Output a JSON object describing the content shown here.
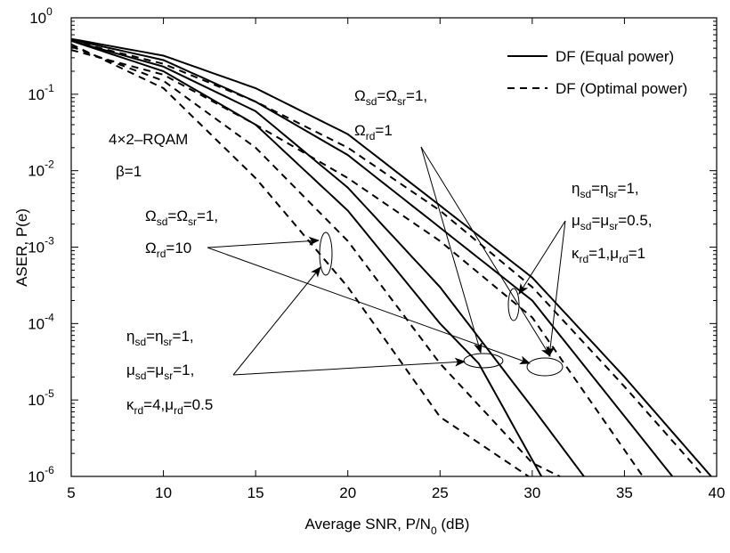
{
  "chart_data": {
    "type": "line",
    "xlabel": "Average SNR, P/N",
    "xlabel_sub": "0",
    "xlabel_unit": " (dB)",
    "ylabel": "ASER, P(e)",
    "xlim": [
      5,
      40
    ],
    "ylim": [
      1e-06,
      1
    ],
    "yscale": "log",
    "x_ticks": [
      "5",
      "10",
      "15",
      "20",
      "25",
      "30",
      "35",
      "40"
    ],
    "y_ticks": [
      {
        "base": "10",
        "exp": "0",
        "value": 1
      },
      {
        "base": "10",
        "exp": "-1",
        "value": 0.1
      },
      {
        "base": "10",
        "exp": "-2",
        "value": 0.01
      },
      {
        "base": "10",
        "exp": "-3",
        "value": 0.001
      },
      {
        "base": "10",
        "exp": "-4",
        "value": 0.0001
      },
      {
        "base": "10",
        "exp": "-5",
        "value": 1e-05
      },
      {
        "base": "10",
        "exp": "-6",
        "value": 1e-06
      }
    ],
    "grid": false,
    "legend_position": "top-right",
    "legend": [
      {
        "label": "DF (Equal power)",
        "style": "solid"
      },
      {
        "label": "DF (Optimal power)",
        "style": "dashed"
      }
    ],
    "series": [
      {
        "style": "solid",
        "x": [
          5,
          10,
          15,
          20,
          25,
          27.1,
          30.5
        ],
        "y": [
          0.5,
          0.2,
          0.04,
          0.003,
          0.0001,
          3e-05,
          1e-06
        ]
      },
      {
        "style": "solid",
        "x": [
          5,
          10,
          15,
          20,
          25,
          30,
          32.8
        ],
        "y": [
          0.5,
          0.23,
          0.06,
          0.006,
          0.0003,
          8e-06,
          1e-06
        ]
      },
      {
        "style": "solid",
        "x": [
          5,
          10,
          15,
          20,
          25,
          30,
          37.6
        ],
        "y": [
          0.52,
          0.28,
          0.08,
          0.016,
          0.0018,
          0.0002,
          1e-06
        ]
      },
      {
        "style": "solid",
        "x": [
          5,
          10,
          15,
          20,
          25,
          30,
          35,
          39.7
        ],
        "y": [
          0.53,
          0.32,
          0.12,
          0.03,
          0.0035,
          0.0004,
          2e-05,
          1e-06
        ]
      },
      {
        "style": "dashed",
        "x": [
          5,
          10,
          15,
          20,
          25,
          29.8
        ],
        "y": [
          0.45,
          0.12,
          0.008,
          0.0003,
          6e-06,
          1e-06
        ]
      },
      {
        "style": "dashed",
        "x": [
          5,
          10,
          15,
          20,
          25,
          30,
          31.5
        ],
        "y": [
          0.42,
          0.15,
          0.02,
          0.0012,
          3e-05,
          1.5e-06,
          1e-06
        ]
      },
      {
        "style": "dashed",
        "x": [
          5,
          10,
          15,
          20,
          25,
          30,
          36
        ],
        "y": [
          0.38,
          0.18,
          0.04,
          0.008,
          0.0012,
          0.00012,
          1e-06
        ]
      },
      {
        "style": "dashed",
        "x": [
          5,
          10,
          15,
          20,
          25,
          30,
          35,
          39.3
        ],
        "y": [
          0.5,
          0.25,
          0.08,
          0.02,
          0.003,
          0.0003,
          1.5e-05,
          1e-06
        ]
      }
    ],
    "annotations": {
      "system": "4×2–RQAM",
      "beta": "β=1",
      "group_a_line1": [
        [
          "Ω",
          "sd"
        ],
        [
          "=Ω",
          ""
        ],
        [
          "sr",
          "sub"
        ],
        [
          "=1,",
          ""
        ]
      ],
      "group_a_line2": "Ω rd =1",
      "group_b_line1": "Ω sd =Ω sr =1,",
      "group_b_line2": "Ω rd =10",
      "group_c_line1": "η sd =η sr =1,",
      "group_c_line2": "μ sd =μ sr =0.5,",
      "group_c_line3": "κ rd =1,μ rd =1",
      "group_d_line1": "η sd =η sr =1,",
      "group_d_line2": "μ sd =μ sr =1,",
      "group_d_line3": "κ rd =4,μ rd =0.5"
    }
  }
}
